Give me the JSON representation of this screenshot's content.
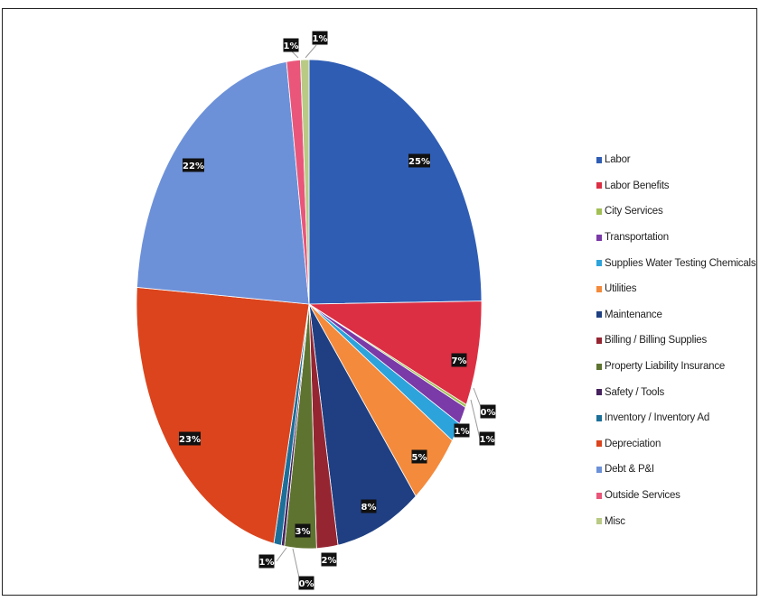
{
  "chart_data": {
    "type": "pie",
    "title": "",
    "legend_position": "right",
    "slices": [
      {
        "label": "Labor",
        "value": 25,
        "display": "25%",
        "color": "#2f5db4"
      },
      {
        "label": "Labor Benefits",
        "value": 7,
        "display": "7%",
        "color": "#dc2f43"
      },
      {
        "label": "City Services",
        "value": 0.2,
        "display": "0%",
        "color": "#a2bf55"
      },
      {
        "label": "Transportation",
        "value": 1.2,
        "display": "1%",
        "color": "#7a3aa7"
      },
      {
        "label": "Supplies Water Testing Chemicals",
        "value": 1.3,
        "display": "1%",
        "color": "#2da3dc"
      },
      {
        "label": "Utilities",
        "value": 5,
        "display": "5%",
        "color": "#f48a3c"
      },
      {
        "label": "Maintenance",
        "value": 8,
        "display": "8%",
        "color": "#1f3f82"
      },
      {
        "label": "Billing / Billing Supplies",
        "value": 2,
        "display": "2%",
        "color": "#962532"
      },
      {
        "label": "Property Liability Insurance",
        "value": 3,
        "display": "3%",
        "color": "#5f7331"
      },
      {
        "label": "Safety / Tools",
        "value": 0.3,
        "display": "0%",
        "color": "#46225e"
      },
      {
        "label": "Inventory / Inventory Ad",
        "value": 0.7,
        "display": "1%",
        "color": "#1c6f99"
      },
      {
        "label": "Depreciation",
        "value": 23,
        "display": "23%",
        "color": "#db441d"
      },
      {
        "label": "Debt & P&I",
        "value": 22,
        "display": "22%",
        "color": "#6d91d8"
      },
      {
        "label": "Outside Services",
        "value": 1.3,
        "display": "1%",
        "color": "#e9567a"
      },
      {
        "label": "Misc",
        "value": 0.8,
        "display": "1%",
        "color": "#b9ca85"
      }
    ]
  }
}
